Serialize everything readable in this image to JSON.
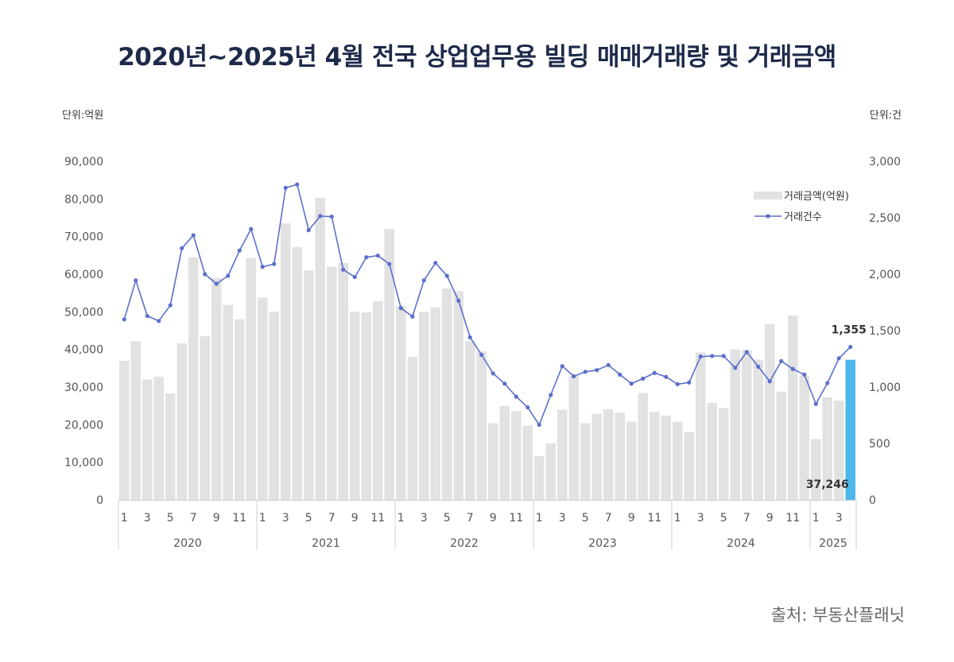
{
  "title": "2020년~2025년 4월 전국 상업업무용 빌딩 매매거래량 및 거래금액",
  "unit_left": "단위:억원",
  "unit_right": "단위:건",
  "source": "출처: 부동산플래닛",
  "chart_data": {
    "type": "bar",
    "categories": [
      "2020-01",
      "2020-02",
      "2020-03",
      "2020-04",
      "2020-05",
      "2020-06",
      "2020-07",
      "2020-08",
      "2020-09",
      "2020-10",
      "2020-11",
      "2020-12",
      "2021-01",
      "2021-02",
      "2021-03",
      "2021-04",
      "2021-05",
      "2021-06",
      "2021-07",
      "2021-08",
      "2021-09",
      "2021-10",
      "2021-11",
      "2021-12",
      "2022-01",
      "2022-02",
      "2022-03",
      "2022-04",
      "2022-05",
      "2022-06",
      "2022-07",
      "2022-08",
      "2022-09",
      "2022-10",
      "2022-11",
      "2022-12",
      "2023-01",
      "2023-02",
      "2023-03",
      "2023-04",
      "2023-05",
      "2023-06",
      "2023-07",
      "2023-08",
      "2023-09",
      "2023-10",
      "2023-11",
      "2023-12",
      "2024-01",
      "2024-02",
      "2024-03",
      "2024-04",
      "2024-05",
      "2024-06",
      "2024-07",
      "2024-08",
      "2024-09",
      "2024-10",
      "2024-11",
      "2024-12",
      "2025-01",
      "2025-02",
      "2025-03",
      "2025-04"
    ],
    "x_tick_labels": [
      "1",
      "3",
      "5",
      "7",
      "9",
      "11"
    ],
    "years": [
      "2020",
      "2021",
      "2022",
      "2023",
      "2024",
      "2025"
    ],
    "series": [
      {
        "name": "거래금액(억원)",
        "type": "bar",
        "axis": "left",
        "color": "#e2e2e2",
        "highlight_color": "#4db8ec",
        "values": [
          37000,
          42200,
          32000,
          32700,
          28300,
          41600,
          64500,
          43500,
          59000,
          51800,
          48000,
          64300,
          53800,
          50000,
          73500,
          67200,
          61000,
          80300,
          62000,
          63000,
          50000,
          49800,
          52800,
          72000,
          51500,
          38000,
          50000,
          51200,
          56200,
          55500,
          42200,
          39500,
          20400,
          25000,
          23600,
          19800,
          11600,
          15000,
          24000,
          33000,
          20400,
          22900,
          24100,
          23200,
          20800,
          28400,
          23400,
          22400,
          20800,
          18100,
          39200,
          25800,
          24400,
          40000,
          39800,
          37300,
          46800,
          28800,
          49000,
          33000,
          16200,
          27300,
          26400,
          37246
        ]
      },
      {
        "name": "거래건수",
        "type": "line",
        "axis": "right",
        "color": "#5b6fcb",
        "values": [
          1600,
          1945,
          1630,
          1585,
          1725,
          2230,
          2345,
          2000,
          1915,
          1985,
          2210,
          2400,
          2065,
          2090,
          2765,
          2795,
          2390,
          2515,
          2510,
          2040,
          1975,
          2150,
          2165,
          2090,
          1700,
          1625,
          1945,
          2100,
          1985,
          1765,
          1440,
          1285,
          1120,
          1030,
          915,
          820,
          665,
          930,
          1185,
          1095,
          1135,
          1150,
          1195,
          1110,
          1030,
          1075,
          1125,
          1090,
          1025,
          1040,
          1270,
          1275,
          1275,
          1170,
          1310,
          1180,
          1050,
          1230,
          1160,
          1110,
          850,
          1035,
          1255,
          1355
        ]
      }
    ],
    "left_axis": {
      "ylim": [
        0,
        90000
      ],
      "ticks": [
        "0",
        "10,000",
        "20,000",
        "30,000",
        "40,000",
        "50,000",
        "60,000",
        "70,000",
        "80,000",
        "90,000"
      ]
    },
    "right_axis": {
      "ylim": [
        0,
        3000
      ],
      "ticks": [
        "0",
        "500",
        "1,000",
        "1,500",
        "2,000",
        "2,500",
        "3,000"
      ]
    },
    "annotations": [
      "1,355",
      "37,246"
    ],
    "legend_position": "top-right",
    "grid": false
  }
}
